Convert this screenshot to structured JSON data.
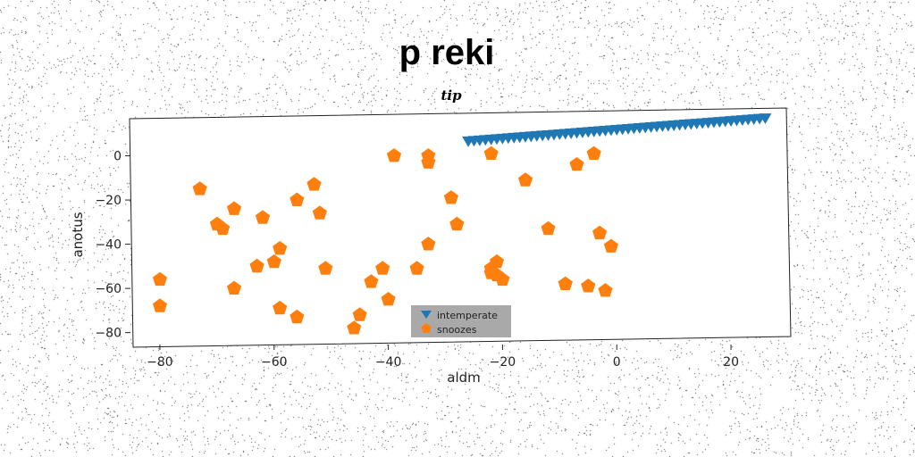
{
  "chart_data": {
    "type": "scatter",
    "title": "p reki",
    "subtitle": "tip",
    "xlabel": "aldm",
    "ylabel": "anotus",
    "xlim": [
      -85,
      30
    ],
    "ylim": [
      -85,
      18
    ],
    "xticks": [
      -80,
      -60,
      -40,
      -20,
      0,
      20
    ],
    "yticks": [
      0,
      -20,
      -40,
      -60,
      -80
    ],
    "xtick_labels": [
      "−80",
      "−60",
      "−40",
      "−20",
      "0",
      "20"
    ],
    "ytick_labels": [
      "0",
      "−20",
      "−40",
      "−60",
      "−80"
    ],
    "grid": false,
    "legend_position": "bottom-center",
    "series": [
      {
        "name": "intemperate",
        "marker": "triangle-down",
        "color": "#1f77b4",
        "x": [
          -26,
          -25,
          -24,
          -23,
          -22,
          -21,
          -20,
          -19,
          -18,
          -17,
          -16,
          -15,
          -14,
          -13,
          -12,
          -11,
          -10,
          -9,
          -8,
          -7,
          -6,
          -5,
          -4,
          -3,
          -2,
          -1,
          0,
          1,
          2,
          3,
          4,
          5,
          6,
          7,
          8,
          9,
          10,
          11,
          12,
          13,
          14,
          15,
          16,
          17,
          18,
          19,
          20,
          21,
          22,
          23,
          24,
          25,
          26
        ],
        "y": [
          6.5,
          6.7,
          6.9,
          7.1,
          7.3,
          7.5,
          7.7,
          7.9,
          8.1,
          8.3,
          8.5,
          8.7,
          8.9,
          9.1,
          9.3,
          9.5,
          9.7,
          9.9,
          10.1,
          10.3,
          10.5,
          10.7,
          10.9,
          11.1,
          11.3,
          11.5,
          11.7,
          11.9,
          12.1,
          12.3,
          12.5,
          12.7,
          12.9,
          13.1,
          13.3,
          13.5,
          13.7,
          13.9,
          14.1,
          14.3,
          14.5,
          14.7,
          14.9,
          15.1,
          15.3,
          15.5,
          15.7,
          15.9,
          16.1,
          16.3,
          16.5,
          16.7,
          16.9
        ]
      },
      {
        "name": "snoozes",
        "marker": "pentagon",
        "color": "#ff7f0e",
        "x": [
          -80,
          -80,
          -73,
          -70,
          -69,
          -67,
          -67,
          -63,
          -62,
          -60,
          -59,
          -59,
          -56,
          -56,
          -53,
          -52,
          -51,
          -46,
          -45,
          -43,
          -41,
          -40,
          -39,
          -35,
          -33,
          -33,
          -33,
          -29,
          -28,
          -22,
          -22,
          -22,
          -21,
          -21,
          -20,
          -16,
          -12,
          -9,
          -9,
          -7,
          -5,
          -4,
          -3,
          -2,
          -1
        ],
        "y": [
          -56,
          -68,
          -15,
          -31,
          -33,
          -60,
          -24,
          -50,
          -28,
          -48,
          -69,
          -42,
          -73,
          -20,
          -13,
          -26,
          -51,
          -78,
          -72,
          -57,
          -51,
          -65,
          0,
          -51,
          -3,
          -40,
          0,
          -19,
          -31,
          1,
          -51,
          -53,
          -48,
          -54,
          -56,
          -11,
          -33,
          -58,
          -58,
          -4,
          -59,
          1,
          -35,
          -61,
          -41
        ]
      }
    ]
  }
}
